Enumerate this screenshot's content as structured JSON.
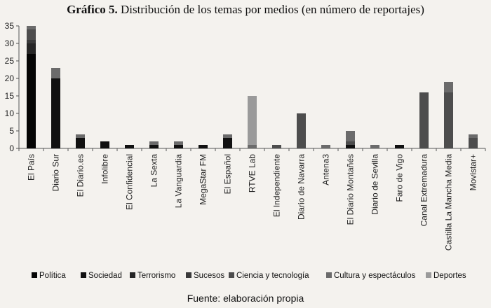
{
  "title": {
    "prefix": "Gráfico 5.",
    "text": "Distribución de los temas por medios (en número de reportajes)"
  },
  "source": "Fuente: elaboración propia",
  "chart_data": {
    "type": "bar",
    "stacked": true,
    "ylim": [
      0,
      35
    ],
    "yticks": [
      0,
      5,
      10,
      15,
      20,
      25,
      30,
      35
    ],
    "grid": false,
    "legend_position": "bottom",
    "categories": [
      "El País",
      "Diario Sur",
      "El Diario.es",
      "Infolibre",
      "El Confidencial",
      "La Sexta",
      "La Vanguardia",
      "MegaStar FM",
      "El Español",
      "RTVE Lab",
      "El Independiente",
      "Diario de Navarra",
      "Antena3",
      "El Diario Montañés",
      "Diario de Sevilla",
      "Faro de Vigo",
      "Canal Extremadura",
      "Castilla La Mancha Media",
      "Movistar+"
    ],
    "series": [
      {
        "name": "Política",
        "color": "#050505",
        "values": [
          27,
          0,
          0,
          0,
          0,
          0,
          0,
          0,
          0,
          0,
          0,
          0,
          0,
          0,
          0,
          0,
          0,
          0,
          0
        ]
      },
      {
        "name": "Sociedad",
        "color": "#111111",
        "values": [
          0,
          20,
          3,
          2,
          1,
          1,
          1,
          1,
          3,
          0,
          0,
          0,
          0,
          1,
          0,
          1,
          0,
          0,
          0
        ]
      },
      {
        "name": "Terrorismo",
        "color": "#262626",
        "values": [
          3,
          0,
          0,
          0,
          0,
          0,
          0,
          0,
          0,
          0,
          0,
          0,
          0,
          0,
          0,
          0,
          0,
          0,
          0
        ]
      },
      {
        "name": "Sucesos",
        "color": "#3a3a3a",
        "values": [
          1,
          0,
          0,
          0,
          0,
          0,
          0,
          0,
          0,
          0,
          0,
          0,
          0,
          0,
          0,
          0,
          0,
          0,
          0
        ]
      },
      {
        "name": "Ciencia y tecnología",
        "color": "#4d4d4d",
        "values": [
          3,
          0,
          0,
          0,
          0,
          0,
          0,
          0,
          0,
          0,
          1,
          10,
          0,
          1,
          0,
          0,
          16,
          16,
          3
        ]
      },
      {
        "name": "Cultura y espectáculos",
        "color": "#6b6b6b",
        "values": [
          1,
          3,
          1,
          0,
          0,
          1,
          1,
          0,
          1,
          1,
          0,
          0,
          1,
          3,
          1,
          0,
          0,
          3,
          1
        ]
      },
      {
        "name": "Deportes",
        "color": "#9a9a9a",
        "values": [
          0,
          0,
          0,
          0,
          0,
          0,
          0,
          0,
          0,
          14,
          0,
          0,
          0,
          0,
          0,
          0,
          0,
          0,
          0
        ]
      }
    ]
  }
}
